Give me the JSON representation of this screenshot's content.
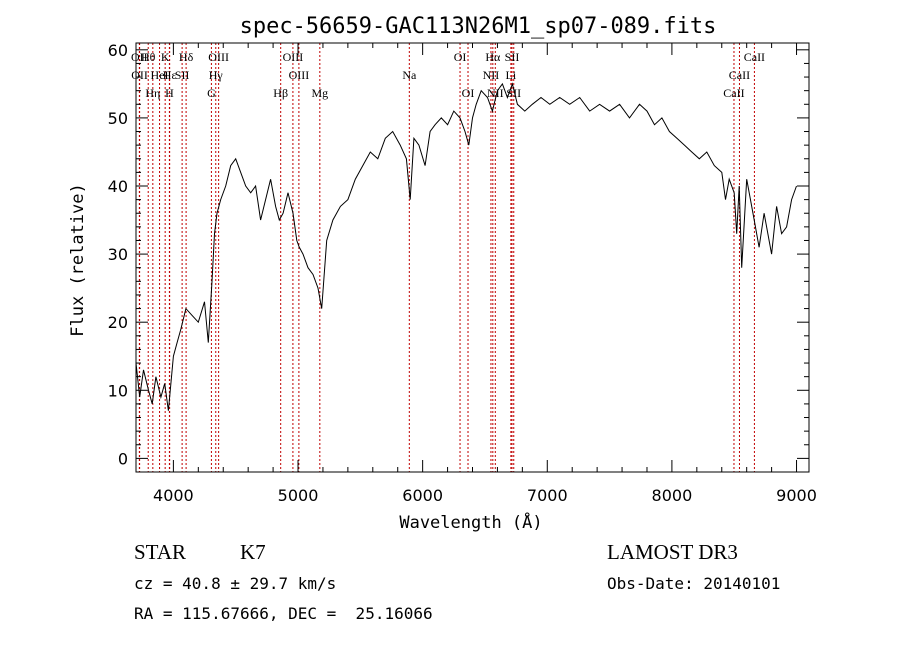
{
  "chart_data": {
    "type": "line",
    "title": "spec-56659-GAC113N26M1_sp07-089.fits",
    "xlabel": "Wavelength (Å)",
    "ylabel": "Flux (relative)",
    "xlim": [
      3700,
      9100
    ],
    "ylim": [
      -2,
      61
    ],
    "xticks": [
      4000,
      5000,
      6000,
      7000,
      8000,
      9000
    ],
    "xtick_labels": [
      "4000",
      "5000",
      "6000",
      "7000",
      "8000",
      "9000"
    ],
    "yticks": [
      0,
      10,
      20,
      30,
      40,
      50,
      60
    ],
    "ytick_labels": [
      "0",
      "10",
      "20",
      "30",
      "40",
      "50",
      "60"
    ],
    "series": [
      {
        "name": "spectrum",
        "x": [
          3700,
          3730,
          3760,
          3800,
          3830,
          3860,
          3900,
          3930,
          3960,
          4000,
          4030,
          4060,
          4100,
          4150,
          4200,
          4250,
          4280,
          4310,
          4330,
          4350,
          4380,
          4420,
          4460,
          4500,
          4540,
          4580,
          4620,
          4660,
          4700,
          4740,
          4780,
          4820,
          4850,
          4880,
          4920,
          4960,
          4990,
          5010,
          5040,
          5080,
          5120,
          5160,
          5190,
          5230,
          5280,
          5340,
          5400,
          5460,
          5520,
          5580,
          5640,
          5700,
          5760,
          5820,
          5870,
          5900,
          5930,
          5970,
          6020,
          6060,
          6100,
          6150,
          6200,
          6250,
          6300,
          6340,
          6370,
          6400,
          6430,
          6470,
          6520,
          6560,
          6600,
          6640,
          6680,
          6720,
          6760,
          6820,
          6880,
          6950,
          7020,
          7100,
          7180,
          7260,
          7340,
          7420,
          7500,
          7580,
          7660,
          7740,
          7800,
          7860,
          7920,
          7980,
          8040,
          8100,
          8160,
          8220,
          8280,
          8340,
          8400,
          8430,
          8460,
          8500,
          8520,
          8540,
          8560,
          8600,
          8640,
          8660,
          8700,
          8740,
          8780,
          8800,
          8840,
          8880,
          8920,
          8960,
          9000
        ],
        "y": [
          14,
          9,
          13,
          10,
          8,
          12,
          9,
          11,
          7,
          15,
          17,
          19,
          22,
          21,
          20,
          23,
          17,
          26,
          33,
          36,
          38,
          40,
          43,
          44,
          42,
          40,
          39,
          40,
          35,
          38,
          41,
          37,
          35,
          36,
          39,
          36,
          32,
          31,
          30,
          28,
          27,
          25,
          22,
          32,
          35,
          37,
          38,
          41,
          43,
          45,
          44,
          47,
          48,
          46,
          44,
          38,
          47,
          46,
          43,
          48,
          49,
          50,
          49,
          51,
          50,
          48,
          46,
          50,
          52,
          54,
          53,
          51,
          54,
          55,
          53,
          55,
          52,
          51,
          52,
          53,
          52,
          53,
          52,
          53,
          51,
          52,
          51,
          52,
          50,
          52,
          51,
          49,
          50,
          48,
          47,
          46,
          45,
          44,
          45,
          43,
          42,
          38,
          41,
          39,
          33,
          40,
          28,
          41,
          37,
          35,
          31,
          36,
          32,
          30,
          37,
          33,
          34,
          38,
          40
        ]
      }
    ],
    "line_annotations": [
      {
        "label": "Hθ",
        "wavelength": 3798
      },
      {
        "label": "K",
        "wavelength": 3934
      },
      {
        "label": "Hδ",
        "wavelength": 4102
      },
      {
        "label": "OIII",
        "wavelength": 4363
      },
      {
        "label": "OIII",
        "wavelength": 4959
      },
      {
        "label": "OI",
        "wavelength": 6300
      },
      {
        "label": "Hα",
        "wavelength": 6563
      },
      {
        "label": "SII",
        "wavelength": 6717
      },
      {
        "label": "CaII",
        "wavelength": 8662
      },
      {
        "label": "OII",
        "wavelength": 3727
      },
      {
        "label": "HeI",
        "wavelength": 3889
      },
      {
        "label": "SII",
        "wavelength": 4070
      },
      {
        "label": "Hγ",
        "wavelength": 4340
      },
      {
        "label": "OIII",
        "wavelength": 5007
      },
      {
        "label": "Na",
        "wavelength": 5893
      },
      {
        "label": "NII",
        "wavelength": 6548
      },
      {
        "label": "Li",
        "wavelength": 6708
      },
      {
        "label": "CaII",
        "wavelength": 8542
      },
      {
        "label": "OII",
        "wavelength": 3729
      },
      {
        "label": "Hε",
        "wavelength": 3970
      },
      {
        "label": "Hη",
        "wavelength": 3835
      },
      {
        "label": "H",
        "wavelength": 3968
      },
      {
        "label": "G",
        "wavelength": 4305
      },
      {
        "label": "Hβ",
        "wavelength": 4861
      },
      {
        "label": "Mg",
        "wavelength": 5175
      },
      {
        "label": "OI",
        "wavelength": 6364
      },
      {
        "label": "NII",
        "wavelength": 6583
      },
      {
        "label": "SII",
        "wavelength": 6731
      },
      {
        "label": "CaII",
        "wavelength": 8498
      }
    ]
  },
  "info": {
    "object_type": "STAR",
    "subclass": "K7",
    "redshift": "cz = 40.8 ± 29.7 km/s",
    "coordinates": "RA = 115.67666, DEC =  25.16066",
    "survey": "LAMOST DR3",
    "obs_date": "Obs-Date: 20140101"
  }
}
